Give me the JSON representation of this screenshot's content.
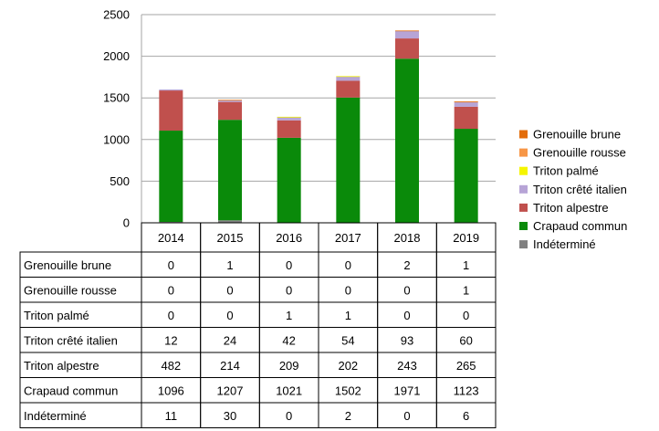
{
  "chart_data": {
    "type": "bar",
    "stacked": true,
    "categories": [
      "2014",
      "2015",
      "2016",
      "2017",
      "2018",
      "2019"
    ],
    "ylim": [
      0,
      2500
    ],
    "yticks": [
      "0",
      "500",
      "1000",
      "1500",
      "2000",
      "2500"
    ],
    "grid": true,
    "legend_position": "right",
    "data_table": true,
    "series": [
      {
        "name": "Indéterminé",
        "color": "#808080",
        "values": [
          11,
          30,
          0,
          2,
          0,
          6
        ]
      },
      {
        "name": "Crapaud commun",
        "color": "#0a8a0a",
        "values": [
          1096,
          1207,
          1021,
          1502,
          1971,
          1123
        ]
      },
      {
        "name": "Triton alpestre",
        "color": "#c0504d",
        "values": [
          482,
          214,
          209,
          202,
          243,
          265
        ]
      },
      {
        "name": "Triton crêté italien",
        "color": "#b7a4d6",
        "values": [
          12,
          24,
          42,
          54,
          93,
          60
        ]
      },
      {
        "name": "Triton palmé",
        "color": "#f5f500",
        "values": [
          0,
          0,
          1,
          1,
          0,
          0
        ]
      },
      {
        "name": "Grenouille rousse",
        "color": "#f79646",
        "values": [
          0,
          0,
          0,
          0,
          0,
          1
        ]
      },
      {
        "name": "Grenouille brune",
        "color": "#e36c09",
        "values": [
          0,
          1,
          0,
          0,
          2,
          1
        ]
      }
    ],
    "legend_order": [
      "Grenouille brune",
      "Grenouille rousse",
      "Triton palmé",
      "Triton crêté italien",
      "Triton alpestre",
      "Crapaud commun",
      "Indéterminé"
    ],
    "table_row_order": [
      "Grenouille brune",
      "Grenouille rousse",
      "Triton palmé",
      "Triton crêté italien",
      "Triton alpestre",
      "Crapaud commun",
      "Indéterminé"
    ]
  }
}
